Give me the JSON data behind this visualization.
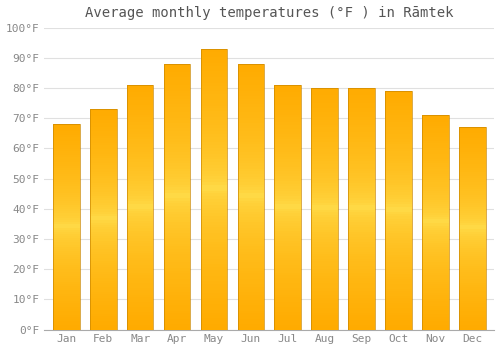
{
  "title": "Average monthly temperatures (°F ) in Rāmtek",
  "months": [
    "Jan",
    "Feb",
    "Mar",
    "Apr",
    "May",
    "Jun",
    "Jul",
    "Aug",
    "Sep",
    "Oct",
    "Nov",
    "Dec"
  ],
  "values": [
    68,
    73,
    81,
    88,
    93,
    88,
    81,
    80,
    80,
    79,
    71,
    67
  ],
  "bar_color": "#FFAA00",
  "bar_gradient_light": "#FFD060",
  "ylim": [
    0,
    100
  ],
  "yticks": [
    0,
    10,
    20,
    30,
    40,
    50,
    60,
    70,
    80,
    90,
    100
  ],
  "ytick_labels": [
    "0°F",
    "10°F",
    "20°F",
    "30°F",
    "40°F",
    "50°F",
    "60°F",
    "70°F",
    "80°F",
    "90°F",
    "100°F"
  ],
  "background_color": "#FFFFFF",
  "grid_color": "#E0E0E0",
  "title_fontsize": 10,
  "tick_fontsize": 8,
  "bar_edge_color": "#CC8800"
}
